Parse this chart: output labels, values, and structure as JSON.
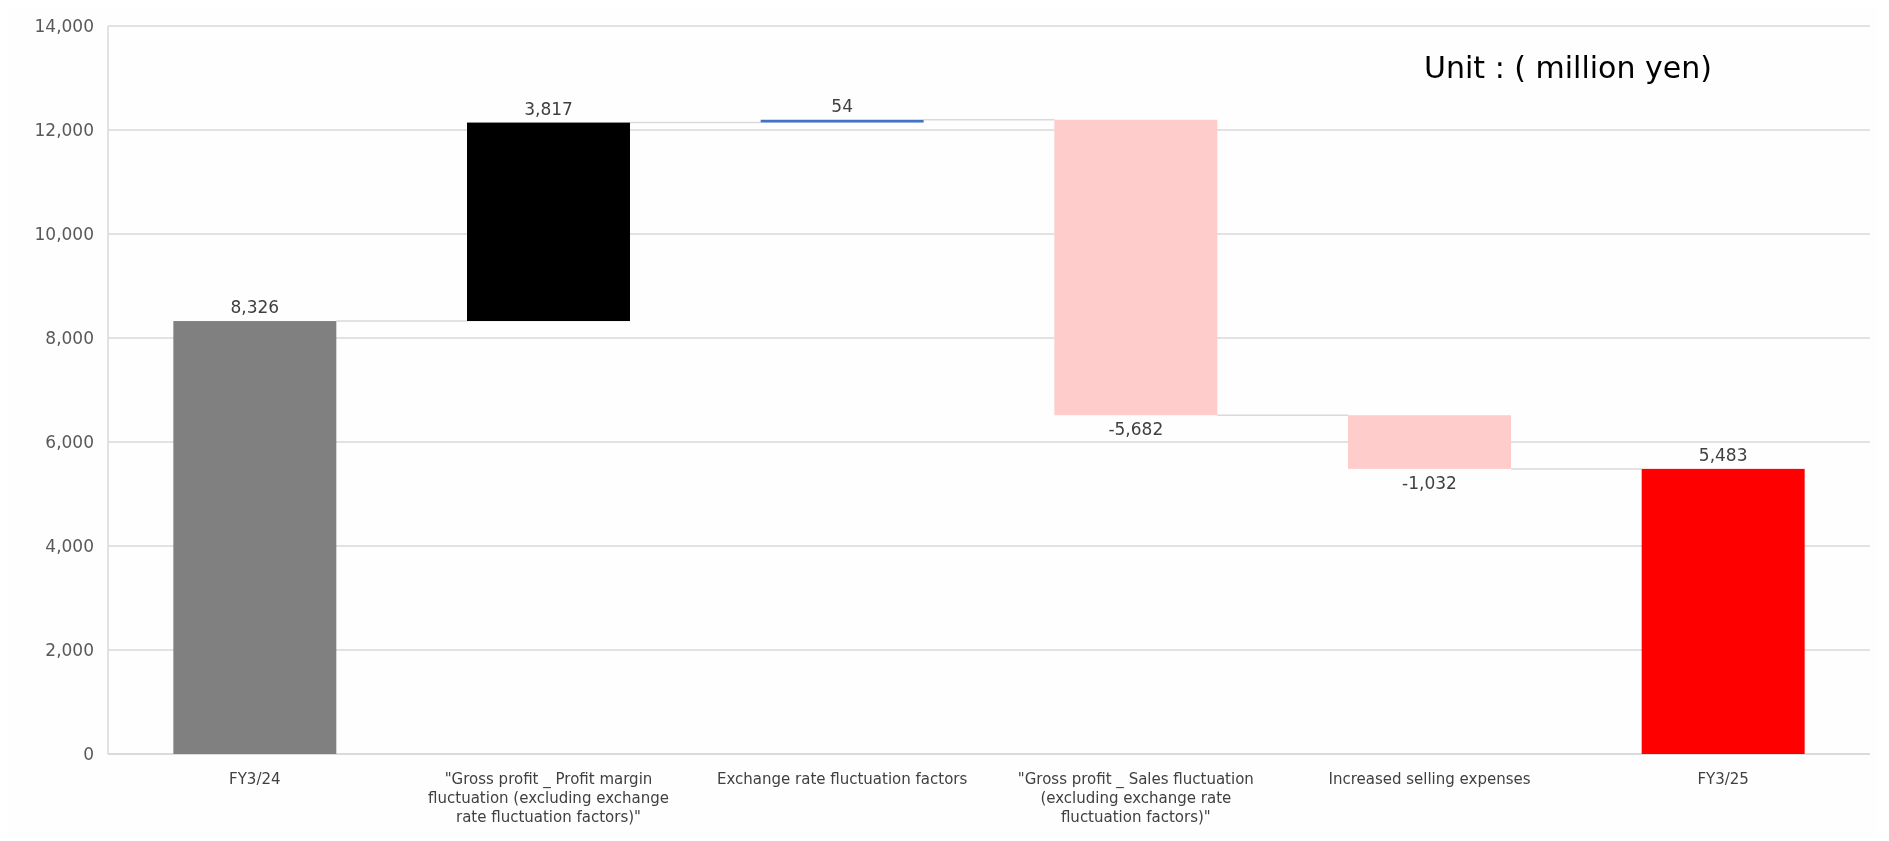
{
  "chart_data": {
    "type": "bar",
    "categories": [
      "FY3/24",
      "\"Gross profit _ Profit margin fluctuation (excluding exchange rate fluctuation factors)\"",
      "Exchange rate fluctuation factors",
      "\"Gross profit _ Sales fluctuation (excluding exchange rate fluctuation factors)\"",
      "Increased selling expenses",
      "FY3/25"
    ],
    "values": [
      8326,
      3817,
      54,
      -5682,
      -1032,
      5483
    ],
    "base": [
      0,
      8326,
      12143,
      12197,
      6515,
      0
    ],
    "colors": [
      "#808080",
      "#000000",
      "#4472c4",
      "#ffcccc",
      "#ffcccc",
      "#ff0000"
    ],
    "value_labels": [
      "8,326",
      "3,817",
      "54",
      "-5,682",
      "-1,032",
      "5,483"
    ],
    "ylim": [
      0,
      14000
    ],
    "yticks": [
      {
        "value": 0,
        "label": "0"
      },
      {
        "value": 2000,
        "label": "2,000"
      },
      {
        "value": 4000,
        "label": "4,000"
      },
      {
        "value": 6000,
        "label": "6,000"
      },
      {
        "value": 8000,
        "label": "8,000"
      },
      {
        "value": 10000,
        "label": "10,000"
      },
      {
        "value": 12000,
        "label": "12,000"
      },
      {
        "value": 14000,
        "label": "14,000"
      }
    ],
    "grid": "y",
    "annotations": [
      "Unit : ( million yen)"
    ]
  }
}
